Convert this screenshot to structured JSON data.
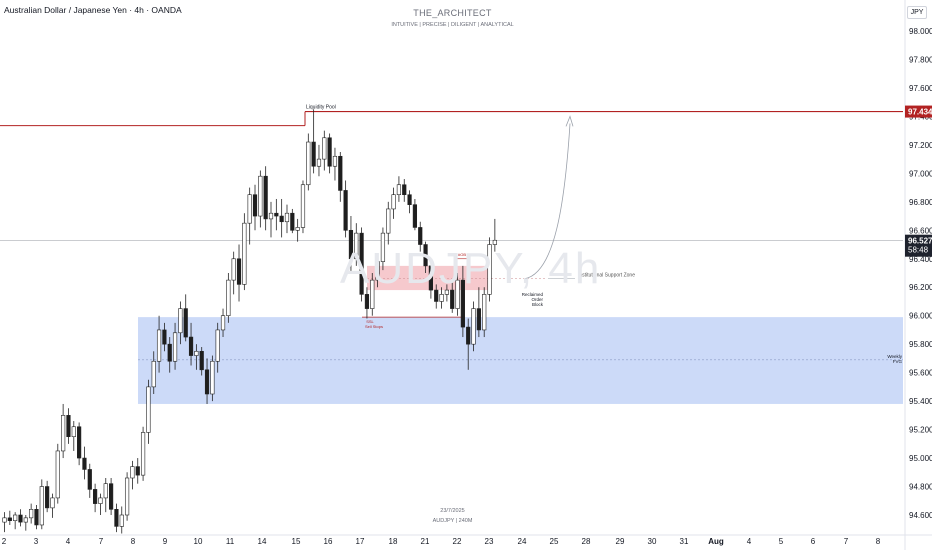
{
  "header": {
    "title": "Australian Dollar / Japanese Yen · 4h · OANDA"
  },
  "branding": {
    "author": "THE_ARCHITECT",
    "tagline": "INTUITIVE | PRECISE | DILIGENT | ANALYTICAL"
  },
  "currency_badge": "JPY",
  "watermark": "AUDJPY, 4h",
  "footer": {
    "date": "23/7/2025",
    "meta": "AUDJPY | 240M"
  },
  "annotations": {
    "liquidity_pool": "Liquidity Pool",
    "institutional_support_zone": "Institutional Support Zone",
    "reclaimed_line1": "Reclaimed",
    "reclaimed_line2": "Order",
    "reclaimed_line3": "Block",
    "ssl_line1": "SSL",
    "ssl_line2": "Sell Stops",
    "weekly_line1": "Weekly",
    "weekly_line2": "FVG",
    "ob_small": "#OB"
  },
  "price_labels": {
    "liquidity_level": "97.434",
    "current_price": "96.527",
    "countdown": "58:48"
  },
  "colors": {
    "up": "#ffffff",
    "down": "#1e1e1e",
    "wick": "#222222",
    "liquidity_line": "#b22222",
    "zone_blue": "#c9d8f8",
    "zone_red": "#f6c9cd",
    "current_price_bg": "#1e222d"
  },
  "chart_data": {
    "type": "candlestick",
    "timeframe": "4h",
    "symbol": "AUDJPY",
    "ylim": [
      94.45,
      98.1
    ],
    "y_ticks": [
      94.6,
      94.8,
      95.0,
      95.2,
      95.4,
      95.6,
      95.8,
      96.0,
      96.2,
      96.4,
      96.6,
      96.8,
      97.0,
      97.2,
      97.4,
      97.6,
      97.8,
      98.0
    ],
    "x_tick_labels": [
      "2",
      "3",
      "4",
      "7",
      "8",
      "9",
      "10",
      "11",
      "14",
      "15",
      "16",
      "17",
      "18",
      "21",
      "22",
      "23",
      "24",
      "25",
      "28",
      "29",
      "30",
      "31",
      "Aug",
      "4",
      "5",
      "6",
      "7",
      "8"
    ],
    "levels": {
      "liquidity_pool": 97.434,
      "current_price": 96.527,
      "ssl": 95.99
    },
    "zones": {
      "weekly_fvg": [
        95.38,
        95.99
      ],
      "reclaimed_order_block": [
        96.18,
        96.35
      ],
      "weekly_fvg_mid": 95.69,
      "institutional_support": 96.26
    },
    "candles": [
      {
        "o": 94.55,
        "h": 94.62,
        "l": 94.48,
        "c": 94.58
      },
      {
        "o": 94.58,
        "h": 94.63,
        "l": 94.53,
        "c": 94.56
      },
      {
        "o": 94.56,
        "h": 94.62,
        "l": 94.5,
        "c": 94.6
      },
      {
        "o": 94.6,
        "h": 94.64,
        "l": 94.52,
        "c": 94.55
      },
      {
        "o": 94.55,
        "h": 94.6,
        "l": 94.49,
        "c": 94.58
      },
      {
        "o": 94.58,
        "h": 94.68,
        "l": 94.54,
        "c": 94.64
      },
      {
        "o": 94.64,
        "h": 94.67,
        "l": 94.5,
        "c": 94.53
      },
      {
        "o": 94.53,
        "h": 94.85,
        "l": 94.5,
        "c": 94.8
      },
      {
        "o": 94.8,
        "h": 94.84,
        "l": 94.62,
        "c": 94.65
      },
      {
        "o": 94.65,
        "h": 94.75,
        "l": 94.58,
        "c": 94.72
      },
      {
        "o": 94.72,
        "h": 95.1,
        "l": 94.68,
        "c": 95.05
      },
      {
        "o": 95.05,
        "h": 95.38,
        "l": 95.0,
        "c": 95.3
      },
      {
        "o": 95.3,
        "h": 95.35,
        "l": 95.1,
        "c": 95.15
      },
      {
        "o": 95.15,
        "h": 95.26,
        "l": 95.05,
        "c": 95.22
      },
      {
        "o": 95.22,
        "h": 95.25,
        "l": 94.95,
        "c": 95.0
      },
      {
        "o": 95.0,
        "h": 95.08,
        "l": 94.85,
        "c": 94.92
      },
      {
        "o": 94.92,
        "h": 94.96,
        "l": 94.72,
        "c": 94.78
      },
      {
        "o": 94.78,
        "h": 94.82,
        "l": 94.62,
        "c": 94.68
      },
      {
        "o": 94.68,
        "h": 94.75,
        "l": 94.6,
        "c": 94.72
      },
      {
        "o": 94.72,
        "h": 94.86,
        "l": 94.62,
        "c": 94.82
      },
      {
        "o": 94.82,
        "h": 94.86,
        "l": 94.6,
        "c": 94.64
      },
      {
        "o": 94.64,
        "h": 94.68,
        "l": 94.48,
        "c": 94.52
      },
      {
        "o": 94.52,
        "h": 94.66,
        "l": 94.47,
        "c": 94.6
      },
      {
        "o": 94.6,
        "h": 94.9,
        "l": 94.56,
        "c": 94.86
      },
      {
        "o": 94.86,
        "h": 94.98,
        "l": 94.78,
        "c": 94.94
      },
      {
        "o": 94.94,
        "h": 95.0,
        "l": 94.82,
        "c": 94.88
      },
      {
        "o": 94.88,
        "h": 95.22,
        "l": 94.84,
        "c": 95.18
      },
      {
        "o": 95.18,
        "h": 95.55,
        "l": 95.1,
        "c": 95.5
      },
      {
        "o": 95.5,
        "h": 95.75,
        "l": 95.45,
        "c": 95.68
      },
      {
        "o": 95.68,
        "h": 96.0,
        "l": 95.6,
        "c": 95.9
      },
      {
        "o": 95.9,
        "h": 95.95,
        "l": 95.75,
        "c": 95.8
      },
      {
        "o": 95.8,
        "h": 95.85,
        "l": 95.6,
        "c": 95.68
      },
      {
        "o": 95.68,
        "h": 95.95,
        "l": 95.62,
        "c": 95.88
      },
      {
        "o": 95.88,
        "h": 96.1,
        "l": 95.8,
        "c": 96.05
      },
      {
        "o": 96.05,
        "h": 96.15,
        "l": 95.82,
        "c": 95.85
      },
      {
        "o": 95.85,
        "h": 95.95,
        "l": 95.65,
        "c": 95.72
      },
      {
        "o": 95.72,
        "h": 95.8,
        "l": 95.62,
        "c": 95.75
      },
      {
        "o": 95.75,
        "h": 95.78,
        "l": 95.58,
        "c": 95.62
      },
      {
        "o": 95.62,
        "h": 95.7,
        "l": 95.38,
        "c": 95.45
      },
      {
        "o": 95.45,
        "h": 95.72,
        "l": 95.4,
        "c": 95.68
      },
      {
        "o": 95.68,
        "h": 95.95,
        "l": 95.6,
        "c": 95.9
      },
      {
        "o": 95.9,
        "h": 96.05,
        "l": 95.85,
        "c": 96.0
      },
      {
        "o": 96.0,
        "h": 96.3,
        "l": 95.95,
        "c": 96.25
      },
      {
        "o": 96.25,
        "h": 96.45,
        "l": 96.15,
        "c": 96.4
      },
      {
        "o": 96.4,
        "h": 96.5,
        "l": 96.1,
        "c": 96.22
      },
      {
        "o": 96.22,
        "h": 96.72,
        "l": 96.18,
        "c": 96.65
      },
      {
        "o": 96.65,
        "h": 96.9,
        "l": 96.5,
        "c": 96.85
      },
      {
        "o": 96.85,
        "h": 96.92,
        "l": 96.6,
        "c": 96.7
      },
      {
        "o": 96.7,
        "h": 97.02,
        "l": 96.62,
        "c": 96.98
      },
      {
        "o": 96.98,
        "h": 97.05,
        "l": 96.6,
        "c": 96.68
      },
      {
        "o": 96.68,
        "h": 96.8,
        "l": 96.55,
        "c": 96.72
      },
      {
        "o": 96.72,
        "h": 96.82,
        "l": 96.6,
        "c": 96.7
      },
      {
        "o": 96.7,
        "h": 96.82,
        "l": 96.55,
        "c": 96.66
      },
      {
        "o": 96.66,
        "h": 96.78,
        "l": 96.58,
        "c": 96.72
      },
      {
        "o": 96.72,
        "h": 96.75,
        "l": 96.58,
        "c": 96.6
      },
      {
        "o": 96.6,
        "h": 96.68,
        "l": 96.52,
        "c": 96.62
      },
      {
        "o": 96.62,
        "h": 96.95,
        "l": 96.58,
        "c": 96.92
      },
      {
        "o": 96.92,
        "h": 97.28,
        "l": 96.88,
        "c": 97.22
      },
      {
        "o": 97.22,
        "h": 97.45,
        "l": 97.0,
        "c": 97.05
      },
      {
        "o": 97.05,
        "h": 97.2,
        "l": 96.98,
        "c": 97.1
      },
      {
        "o": 97.1,
        "h": 97.3,
        "l": 97.02,
        "c": 97.25
      },
      {
        "o": 97.25,
        "h": 97.28,
        "l": 97.0,
        "c": 97.05
      },
      {
        "o": 97.05,
        "h": 97.18,
        "l": 96.95,
        "c": 97.12
      },
      {
        "o": 97.12,
        "h": 97.15,
        "l": 96.8,
        "c": 96.88
      },
      {
        "o": 96.88,
        "h": 96.95,
        "l": 96.55,
        "c": 96.6
      },
      {
        "o": 96.6,
        "h": 96.7,
        "l": 96.3,
        "c": 96.4
      },
      {
        "o": 96.4,
        "h": 96.65,
        "l": 96.35,
        "c": 96.58
      },
      {
        "o": 96.58,
        "h": 96.62,
        "l": 96.1,
        "c": 96.15
      },
      {
        "o": 96.15,
        "h": 96.2,
        "l": 95.98,
        "c": 96.05
      },
      {
        "o": 96.05,
        "h": 96.3,
        "l": 96.0,
        "c": 96.25
      },
      {
        "o": 96.25,
        "h": 96.42,
        "l": 96.2,
        "c": 96.38
      },
      {
        "o": 96.38,
        "h": 96.62,
        "l": 96.32,
        "c": 96.58
      },
      {
        "o": 96.58,
        "h": 96.8,
        "l": 96.5,
        "c": 96.75
      },
      {
        "o": 96.75,
        "h": 96.9,
        "l": 96.68,
        "c": 96.85
      },
      {
        "o": 96.85,
        "h": 96.98,
        "l": 96.8,
        "c": 96.92
      },
      {
        "o": 96.92,
        "h": 96.96,
        "l": 96.8,
        "c": 96.85
      },
      {
        "o": 96.85,
        "h": 96.88,
        "l": 96.72,
        "c": 96.78
      },
      {
        "o": 96.78,
        "h": 96.82,
        "l": 96.6,
        "c": 96.62
      },
      {
        "o": 96.62,
        "h": 96.66,
        "l": 96.45,
        "c": 96.5
      },
      {
        "o": 96.5,
        "h": 96.52,
        "l": 96.3,
        "c": 96.35
      },
      {
        "o": 96.35,
        "h": 96.38,
        "l": 96.12,
        "c": 96.18
      },
      {
        "o": 96.18,
        "h": 96.22,
        "l": 96.05,
        "c": 96.1
      },
      {
        "o": 96.1,
        "h": 96.2,
        "l": 96.05,
        "c": 96.15
      },
      {
        "o": 96.15,
        "h": 96.22,
        "l": 96.1,
        "c": 96.18
      },
      {
        "o": 96.18,
        "h": 96.25,
        "l": 96.02,
        "c": 96.05
      },
      {
        "o": 96.05,
        "h": 96.3,
        "l": 96.0,
        "c": 96.25
      },
      {
        "o": 96.25,
        "h": 96.35,
        "l": 95.85,
        "c": 95.92
      },
      {
        "o": 95.92,
        "h": 95.98,
        "l": 95.62,
        "c": 95.8
      },
      {
        "o": 95.8,
        "h": 96.1,
        "l": 95.75,
        "c": 96.05
      },
      {
        "o": 96.05,
        "h": 96.2,
        "l": 95.85,
        "c": 95.9
      },
      {
        "o": 95.9,
        "h": 96.2,
        "l": 95.85,
        "c": 96.15
      },
      {
        "o": 96.15,
        "h": 96.55,
        "l": 96.1,
        "c": 96.5
      },
      {
        "o": 96.5,
        "h": 96.68,
        "l": 96.45,
        "c": 96.53
      }
    ]
  }
}
